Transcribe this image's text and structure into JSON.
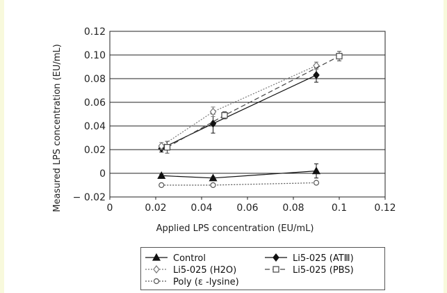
{
  "chart_data": {
    "type": "line",
    "title": "",
    "xlabel": "Applied LPS concentration (EU/mL)",
    "ylabel": "Measured LPS concentration (EU/mL)",
    "xlim": [
      0,
      0.12
    ],
    "ylim": [
      -0.02,
      0.12
    ],
    "x_ticks": [
      "0",
      "0.02",
      "0.04",
      "0.06",
      "0.08",
      "0.1",
      "0.12"
    ],
    "y_ticks": [
      "0.12",
      "0.10",
      "0.08",
      "0.06",
      "0.04",
      "0.02",
      "0",
      "− 0.02"
    ],
    "grid": "horizontal",
    "legend_position": "bottom",
    "series": [
      {
        "name": "Control",
        "marker": "triangle-filled",
        "line": "solid",
        "color": "#111111",
        "x": [
          0.0225,
          0.045,
          0.09
        ],
        "y": [
          -0.002,
          -0.004,
          0.002
        ],
        "err": [
          0.001,
          0.001,
          0.006
        ]
      },
      {
        "name": "Li5-025 (ATⅢ)",
        "marker": "diamond-filled",
        "line": "solid",
        "color": "#111111",
        "x": [
          0.0225,
          0.045,
          0.09
        ],
        "y": [
          0.021,
          0.042,
          0.083
        ],
        "err": [
          0.003,
          0.008,
          0.006
        ]
      },
      {
        "name": "Li5-025 (H2O)",
        "marker": "diamond-open",
        "line": "dotted",
        "color": "#777777",
        "x": [
          0.0225,
          0.045,
          0.09
        ],
        "y": [
          0.023,
          0.052,
          0.091
        ],
        "err": [
          0.003,
          0.004,
          0.003
        ]
      },
      {
        "name": "Li5-025 (PBS)",
        "marker": "square-open",
        "line": "dashed",
        "color": "#444444",
        "x": [
          0.025,
          0.05,
          0.1
        ],
        "y": [
          0.022,
          0.049,
          0.099
        ],
        "err": [
          0.005,
          0.003,
          0.004
        ]
      },
      {
        "name": "Poly (ε -lysine)",
        "marker": "circle-open",
        "line": "dotted",
        "color": "#555555",
        "x": [
          0.0225,
          0.045,
          0.09
        ],
        "y": [
          -0.01,
          -0.01,
          -0.008
        ],
        "err": [
          0.001,
          0.001,
          0.001
        ]
      }
    ]
  }
}
